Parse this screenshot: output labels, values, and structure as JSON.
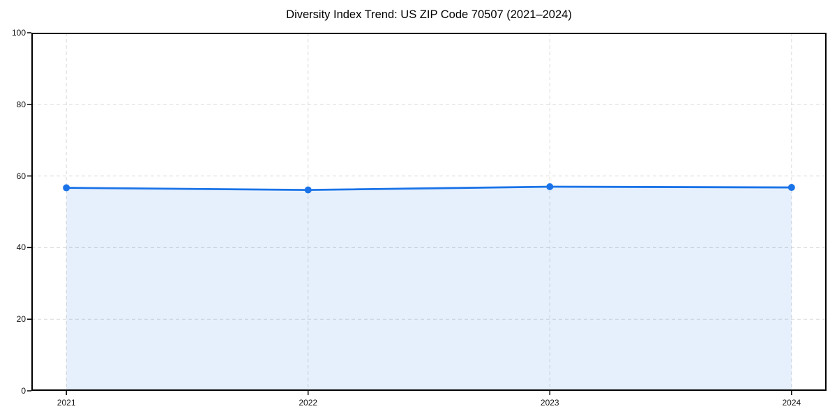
{
  "chart_data": {
    "type": "area",
    "title": "Diversity Index Trend: US ZIP Code 70507 (2021–2024)",
    "x": [
      "2021",
      "2022",
      "2023",
      "2024"
    ],
    "series": [
      {
        "name": "Diversity Index",
        "values": [
          56.7,
          56.1,
          57.0,
          56.8
        ]
      }
    ],
    "xlabel": "",
    "ylabel": "",
    "ylim": [
      0,
      100
    ],
    "yticks": [
      0,
      20,
      40,
      60,
      80,
      100
    ],
    "grid": "dashed horizontal and vertical at ticks",
    "legend_position": "none",
    "line_color": "#1a73e8",
    "marker_color": "#1a73e8",
    "fill_color": "#1a73e8",
    "fill_opacity": 0.11,
    "grid_color": "#d9d9d9",
    "spine_color": "#000000",
    "background_color": "#ffffff"
  }
}
